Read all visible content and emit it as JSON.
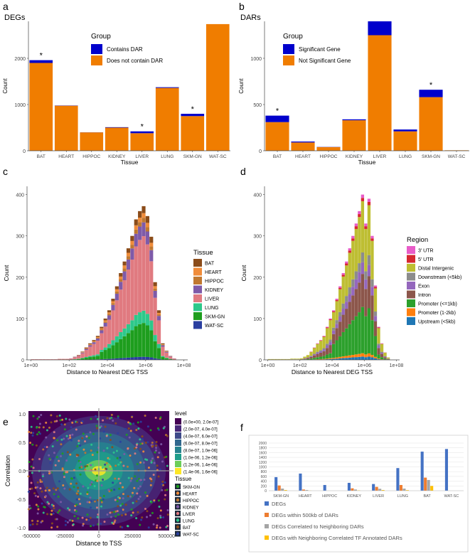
{
  "figure": {
    "colors": {
      "orange": "#F07D00",
      "blue": "#0000CC",
      "f_blue": "#4472C4",
      "f_orange": "#ED7D31",
      "f_gray": "#A5A5A5",
      "f_yellow": "#FFC000"
    }
  },
  "chart_data": [
    {
      "panel": "a",
      "type": "bar",
      "title": "DEGs",
      "xlabel": "Tissue",
      "ylabel": "Count",
      "ylim": [
        0,
        2800
      ],
      "yticks": [
        0,
        1000,
        2000
      ],
      "categories": [
        "BAT",
        "HEART",
        "HIPPOC",
        "KIDNEY",
        "LIVER",
        "LUNG",
        "SKM-GN",
        "WAT-SC"
      ],
      "legend_title": "Group",
      "series": [
        {
          "name": "Does not contain DAR",
          "color": "#F07D00",
          "values": [
            1900,
            975,
            398,
            500,
            380,
            1360,
            750,
            2740
          ]
        },
        {
          "name": "Contains DAR",
          "color": "#0000CC",
          "values": [
            60,
            5,
            2,
            10,
            40,
            15,
            50,
            0
          ]
        }
      ],
      "annotations": [
        {
          "category": "BAT",
          "text": "*"
        },
        {
          "category": "LIVER",
          "text": "*"
        },
        {
          "category": "SKM-GN",
          "text": "*"
        }
      ]
    },
    {
      "panel": "b",
      "type": "bar",
      "title": "DARs",
      "xlabel": "Tissue",
      "ylabel": "Count",
      "ylim": [
        0,
        1400
      ],
      "yticks": [
        0,
        500,
        1000
      ],
      "categories": [
        "BAT",
        "HEART",
        "HIPPOC",
        "KIDNEY",
        "LIVER",
        "LUNG",
        "SKM-GN",
        "WAT-SC"
      ],
      "legend_title": "Group",
      "series": [
        {
          "name": "Not Significant Gene",
          "color": "#F07D00",
          "values": [
            310,
            90,
            40,
            330,
            1250,
            210,
            580,
            5
          ]
        },
        {
          "name": "Significant Gene",
          "color": "#0000CC",
          "values": [
            70,
            10,
            2,
            10,
            150,
            20,
            80,
            0
          ]
        }
      ],
      "annotations": [
        {
          "category": "BAT",
          "text": "*"
        },
        {
          "category": "SKM-GN",
          "text": "*"
        }
      ]
    },
    {
      "panel": "c",
      "type": "bar",
      "subtype": "stacked-histogram",
      "xlabel": "Distance to Nearest DEG TSS",
      "ylabel": "Count",
      "ylim": [
        0,
        420
      ],
      "yticks": [
        0,
        100,
        200,
        300,
        400
      ],
      "xticks": [
        "1e+00",
        "1e+02",
        "1e+04",
        "1e+06",
        "1e+08"
      ],
      "xlim_log10": [
        -0.2,
        8.2
      ],
      "legend_title": "Tissue",
      "series": [
        {
          "name": "BAT",
          "color": "#8B4C1A"
        },
        {
          "name": "HEART",
          "color": "#F08C3A"
        },
        {
          "name": "HIPPOC",
          "color": "#C07830"
        },
        {
          "name": "KIDNEY",
          "color": "#7E5AA8"
        },
        {
          "name": "LIVER",
          "color": "#E07A80"
        },
        {
          "name": "LUNG",
          "color": "#2DC88A"
        },
        {
          "name": "SKM-GN",
          "color": "#1E9E1E"
        },
        {
          "name": "WAT-SC",
          "color": "#2A3FA0"
        }
      ],
      "bin_log10_starts": [
        0.0,
        0.2,
        0.4,
        0.6,
        0.8,
        1.0,
        1.2,
        1.4,
        1.6,
        1.8,
        2.0,
        2.2,
        2.4,
        2.6,
        2.8,
        3.0,
        3.2,
        3.4,
        3.6,
        3.8,
        4.0,
        4.2,
        4.4,
        4.6,
        4.8,
        5.0,
        5.2,
        5.4,
        5.6,
        5.8,
        6.0,
        6.2,
        6.4,
        6.6,
        6.8,
        7.0,
        7.2,
        7.4
      ],
      "totals": [
        2,
        2,
        2,
        2,
        2,
        2,
        2,
        3,
        3,
        3,
        4,
        8,
        12,
        20,
        30,
        40,
        48,
        58,
        80,
        100,
        120,
        148,
        178,
        210,
        238,
        270,
        300,
        340,
        360,
        372,
        348,
        298,
        188,
        120,
        40,
        22,
        10,
        4
      ]
    },
    {
      "panel": "d",
      "type": "bar",
      "subtype": "stacked-histogram",
      "xlabel": "Distance to Nearest DEG TSS",
      "ylabel": "Count",
      "ylim": [
        0,
        420
      ],
      "yticks": [
        0,
        100,
        200,
        300,
        400
      ],
      "xticks": [
        "1e+00",
        "1e+02",
        "1e+04",
        "1e+06",
        "1e+08"
      ],
      "xlim_log10": [
        -0.2,
        8.2
      ],
      "legend_title": "Region",
      "series": [
        {
          "name": "3' UTR",
          "color": "#E85CC8"
        },
        {
          "name": "5' UTR",
          "color": "#D62830"
        },
        {
          "name": "Distal Intergenic",
          "color": "#BEBE32"
        },
        {
          "name": "Downstream (<5kb)",
          "color": "#8C8C8C"
        },
        {
          "name": "Exon",
          "color": "#9467BD"
        },
        {
          "name": "Intron",
          "color": "#8C564B"
        },
        {
          "name": "Promoter (<=1kb)",
          "color": "#2CA02C"
        },
        {
          "name": "Promoter (1-2kb)",
          "color": "#FF7F0E"
        },
        {
          "name": "Upstream (<5kb)",
          "color": "#1F77B4"
        }
      ],
      "bin_log10_starts": [
        0.0,
        0.2,
        0.4,
        0.6,
        0.8,
        1.0,
        1.2,
        1.4,
        1.6,
        1.8,
        2.0,
        2.2,
        2.4,
        2.6,
        2.8,
        3.0,
        3.2,
        3.4,
        3.6,
        3.8,
        4.0,
        4.2,
        4.4,
        4.6,
        4.8,
        5.0,
        5.2,
        5.4,
        5.6,
        5.8,
        6.0,
        6.2,
        6.4,
        6.6,
        6.8,
        7.0,
        7.2,
        7.4
      ],
      "totals": [
        2,
        2,
        2,
        2,
        2,
        2,
        2,
        3,
        3,
        3,
        4,
        8,
        12,
        20,
        30,
        40,
        48,
        58,
        80,
        100,
        120,
        148,
        178,
        210,
        238,
        270,
        300,
        330,
        360,
        400,
        330,
        390,
        300,
        180,
        80,
        40,
        18,
        6
      ]
    },
    {
      "panel": "e",
      "type": "scatter",
      "subtype": "density-contour",
      "xlabel": "Distance to TSS",
      "ylabel": "Correlation",
      "xlim": [
        -520000,
        520000
      ],
      "ylim": [
        -1.05,
        1.05
      ],
      "xticks": [
        "-500000",
        "-250000",
        "0",
        "250000",
        "500000"
      ],
      "yticks": [
        "-1.0",
        "-0.5",
        "0.0",
        "0.5",
        "1.0"
      ],
      "level_title": "level",
      "levels": [
        {
          "name": "(0.0e+00, 2.0e-07]",
          "color": "#440154"
        },
        {
          "name": "(2.0e-07, 4.0e-07]",
          "color": "#482878"
        },
        {
          "name": "(4.0e-07, 6.0e-07]",
          "color": "#3E4A89"
        },
        {
          "name": "(6.0e-07, 8.0e-07]",
          "color": "#31688E"
        },
        {
          "name": "(8.0e-07, 1.0e-06]",
          "color": "#26838F"
        },
        {
          "name": "(1.0e-06, 1.2e-06]",
          "color": "#1F9D8A"
        },
        {
          "name": "(1.2e-06, 1.4e-06]",
          "color": "#6CCE59"
        },
        {
          "name": "(1.4e-06, 1.6e-06]",
          "color": "#FDE725"
        }
      ],
      "tissue_title": "Tissue",
      "tissues": [
        {
          "name": "SKM-GN",
          "color": "#1E9E1E"
        },
        {
          "name": "HEART",
          "color": "#F08C3A"
        },
        {
          "name": "HIPPOC",
          "color": "#C07830"
        },
        {
          "name": "KIDNEY",
          "color": "#7E5AA8"
        },
        {
          "name": "LIVER",
          "color": "#E07A80"
        },
        {
          "name": "LUNG",
          "color": "#2DC88A"
        },
        {
          "name": "BAT",
          "color": "#8B4C1A"
        },
        {
          "name": "WAT-SC",
          "color": "#2A3FA0"
        }
      ]
    },
    {
      "panel": "f",
      "type": "bar",
      "ylim": [
        0,
        2000
      ],
      "yticks": [
        0,
        200,
        400,
        600,
        800,
        1000,
        1200,
        1400,
        1600,
        1800,
        2000
      ],
      "categories": [
        "SKM-GN",
        "HEART",
        "HIPPOC",
        "KIDNEY",
        "LIVER",
        "LUNG",
        "BAT",
        "WAT-SC"
      ],
      "series": [
        {
          "name": "DEGs",
          "color": "#4472C4",
          "values": [
            570,
            720,
            240,
            330,
            280,
            950,
            1640,
            1750
          ]
        },
        {
          "name": "DEGs within 500kb of DARs",
          "color": "#ED7D31",
          "values": [
            220,
            50,
            0,
            100,
            160,
            240,
            550,
            0
          ]
        },
        {
          "name": "DEGs Correlated to Neighboring DARs",
          "color": "#A5A5A5",
          "values": [
            90,
            30,
            0,
            50,
            80,
            90,
            450,
            0
          ]
        },
        {
          "name": "DEGs with Neighboring Correlated TF Annotated DARs",
          "color": "#FFC000",
          "values": [
            30,
            5,
            0,
            15,
            30,
            25,
            200,
            0
          ]
        }
      ]
    }
  ]
}
